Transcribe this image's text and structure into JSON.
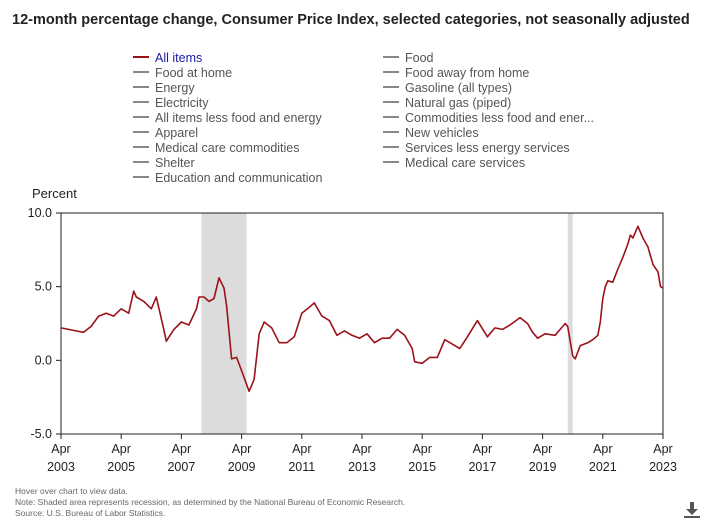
{
  "title": "12-month percentage change, Consumer Price Index, selected categories, not seasonally adjusted",
  "legend": {
    "left": [
      {
        "label": "All items",
        "active": true
      },
      {
        "label": "Food at home",
        "active": false
      },
      {
        "label": "Energy",
        "active": false
      },
      {
        "label": "Electricity",
        "active": false
      },
      {
        "label": "All items less food and energy",
        "active": false
      },
      {
        "label": "Apparel",
        "active": false
      },
      {
        "label": "Medical care commodities",
        "active": false
      },
      {
        "label": "Shelter",
        "active": false
      },
      {
        "label": "Education and communication",
        "active": false
      }
    ],
    "right": [
      {
        "label": "Food",
        "active": false
      },
      {
        "label": "Food away from home",
        "active": false
      },
      {
        "label": "Gasoline (all types)",
        "active": false
      },
      {
        "label": "Natural gas (piped)",
        "active": false
      },
      {
        "label": "Commodities less food and ener...",
        "active": false
      },
      {
        "label": "New vehicles",
        "active": false
      },
      {
        "label": "Services less energy services",
        "active": false
      },
      {
        "label": "Medical care services",
        "active": false
      }
    ]
  },
  "notes": {
    "hover": "Hover over chart to view data.",
    "note": "Note: Shaded area represents recession, as determined by the National Bureau of Economic Research.",
    "source": "Source: U.S. Bureau of Labor Statistics."
  },
  "colors": {
    "series": "#9b1219",
    "recession": "#dcdcdc",
    "axis": "#222222"
  },
  "icons": {
    "download": "download-icon"
  },
  "chart_data": {
    "type": "line",
    "ylabel": "Percent",
    "ylim": [
      -5.0,
      10.0
    ],
    "yticks": [
      "10.0",
      "5.0",
      "0.0",
      "-5.0"
    ],
    "ytick_values": [
      10,
      5,
      0,
      -5
    ],
    "xlim": [
      "2003-04",
      "2023-04"
    ],
    "xticks": [
      {
        "month": "Apr",
        "year": "2003"
      },
      {
        "month": "Apr",
        "year": "2005"
      },
      {
        "month": "Apr",
        "year": "2007"
      },
      {
        "month": "Apr",
        "year": "2009"
      },
      {
        "month": "Apr",
        "year": "2011"
      },
      {
        "month": "Apr",
        "year": "2013"
      },
      {
        "month": "Apr",
        "year": "2015"
      },
      {
        "month": "Apr",
        "year": "2017"
      },
      {
        "month": "Apr",
        "year": "2019"
      },
      {
        "month": "Apr",
        "year": "2021"
      },
      {
        "month": "Apr",
        "year": "2023"
      }
    ],
    "recessions": [
      {
        "start": "2007-12",
        "end": "2009-06"
      },
      {
        "start": "2020-02",
        "end": "2020-04"
      }
    ],
    "grid": false,
    "series": [
      {
        "name": "All items",
        "points": [
          [
            "2003-04",
            2.2
          ],
          [
            "2003-07",
            2.1
          ],
          [
            "2003-10",
            2.0
          ],
          [
            "2004-01",
            1.9
          ],
          [
            "2004-04",
            2.3
          ],
          [
            "2004-07",
            3.0
          ],
          [
            "2004-10",
            3.2
          ],
          [
            "2005-01",
            3.0
          ],
          [
            "2005-04",
            3.5
          ],
          [
            "2005-07",
            3.2
          ],
          [
            "2005-09",
            4.7
          ],
          [
            "2005-10",
            4.3
          ],
          [
            "2006-01",
            4.0
          ],
          [
            "2006-04",
            3.5
          ],
          [
            "2006-06",
            4.3
          ],
          [
            "2006-09",
            2.1
          ],
          [
            "2006-10",
            1.3
          ],
          [
            "2007-01",
            2.1
          ],
          [
            "2007-04",
            2.6
          ],
          [
            "2007-07",
            2.4
          ],
          [
            "2007-10",
            3.5
          ],
          [
            "2007-11",
            4.3
          ],
          [
            "2008-01",
            4.3
          ],
          [
            "2008-03",
            4.0
          ],
          [
            "2008-05",
            4.2
          ],
          [
            "2008-07",
            5.6
          ],
          [
            "2008-09",
            4.9
          ],
          [
            "2008-10",
            3.7
          ],
          [
            "2008-12",
            0.1
          ],
          [
            "2009-02",
            0.2
          ],
          [
            "2009-04",
            -0.7
          ],
          [
            "2009-07",
            -2.1
          ],
          [
            "2009-09",
            -1.3
          ],
          [
            "2009-11",
            1.8
          ],
          [
            "2010-01",
            2.6
          ],
          [
            "2010-04",
            2.2
          ],
          [
            "2010-07",
            1.2
          ],
          [
            "2010-10",
            1.2
          ],
          [
            "2011-01",
            1.6
          ],
          [
            "2011-04",
            3.2
          ],
          [
            "2011-07",
            3.6
          ],
          [
            "2011-09",
            3.9
          ],
          [
            "2011-12",
            3.0
          ],
          [
            "2012-03",
            2.7
          ],
          [
            "2012-06",
            1.7
          ],
          [
            "2012-09",
            2.0
          ],
          [
            "2012-12",
            1.7
          ],
          [
            "2013-03",
            1.5
          ],
          [
            "2013-06",
            1.8
          ],
          [
            "2013-09",
            1.2
          ],
          [
            "2013-12",
            1.5
          ],
          [
            "2014-03",
            1.5
          ],
          [
            "2014-06",
            2.1
          ],
          [
            "2014-09",
            1.7
          ],
          [
            "2014-12",
            0.8
          ],
          [
            "2015-01",
            -0.1
          ],
          [
            "2015-04",
            -0.2
          ],
          [
            "2015-07",
            0.2
          ],
          [
            "2015-10",
            0.2
          ],
          [
            "2016-01",
            1.4
          ],
          [
            "2016-04",
            1.1
          ],
          [
            "2016-07",
            0.8
          ],
          [
            "2016-10",
            1.6
          ],
          [
            "2017-02",
            2.7
          ],
          [
            "2017-06",
            1.6
          ],
          [
            "2017-09",
            2.2
          ],
          [
            "2017-12",
            2.1
          ],
          [
            "2018-03",
            2.4
          ],
          [
            "2018-07",
            2.9
          ],
          [
            "2018-10",
            2.5
          ],
          [
            "2018-12",
            1.9
          ],
          [
            "2019-02",
            1.5
          ],
          [
            "2019-05",
            1.8
          ],
          [
            "2019-09",
            1.7
          ],
          [
            "2019-12",
            2.3
          ],
          [
            "2020-01",
            2.5
          ],
          [
            "2020-02",
            2.3
          ],
          [
            "2020-04",
            0.3
          ],
          [
            "2020-05",
            0.1
          ],
          [
            "2020-07",
            1.0
          ],
          [
            "2020-10",
            1.2
          ],
          [
            "2020-12",
            1.4
          ],
          [
            "2021-02",
            1.7
          ],
          [
            "2021-03",
            2.6
          ],
          [
            "2021-04",
            4.2
          ],
          [
            "2021-05",
            5.0
          ],
          [
            "2021-06",
            5.4
          ],
          [
            "2021-08",
            5.3
          ],
          [
            "2021-10",
            6.2
          ],
          [
            "2021-12",
            7.0
          ],
          [
            "2022-02",
            7.9
          ],
          [
            "2022-03",
            8.5
          ],
          [
            "2022-04",
            8.3
          ],
          [
            "2022-06",
            9.1
          ],
          [
            "2022-08",
            8.3
          ],
          [
            "2022-10",
            7.7
          ],
          [
            "2022-12",
            6.5
          ],
          [
            "2023-02",
            6.0
          ],
          [
            "2023-03",
            5.0
          ],
          [
            "2023-04",
            4.9
          ]
        ]
      }
    ]
  }
}
